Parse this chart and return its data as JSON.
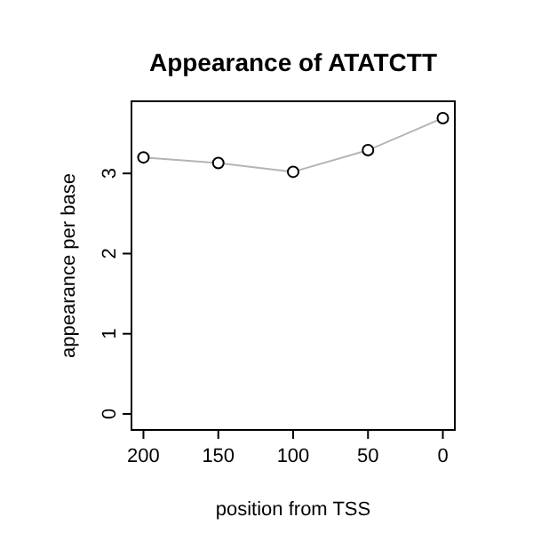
{
  "chart_data": {
    "type": "line",
    "title": "Appearance of ATATCTT",
    "xlabel": "position from TSS",
    "ylabel": "appearance per base",
    "x": [
      200,
      150,
      100,
      50,
      0
    ],
    "series": [
      {
        "color": "#b4b4b4",
        "values": [
          3.2,
          3.13,
          3.02,
          3.29,
          3.69
        ]
      }
    ],
    "xlim": [
      208,
      -8
    ],
    "xticks": [
      200,
      150,
      100,
      50,
      0
    ],
    "ylim": [
      -0.2,
      3.9
    ],
    "yticks": [
      0,
      1,
      2,
      3
    ],
    "marker": "circle",
    "line_style": "solid"
  }
}
